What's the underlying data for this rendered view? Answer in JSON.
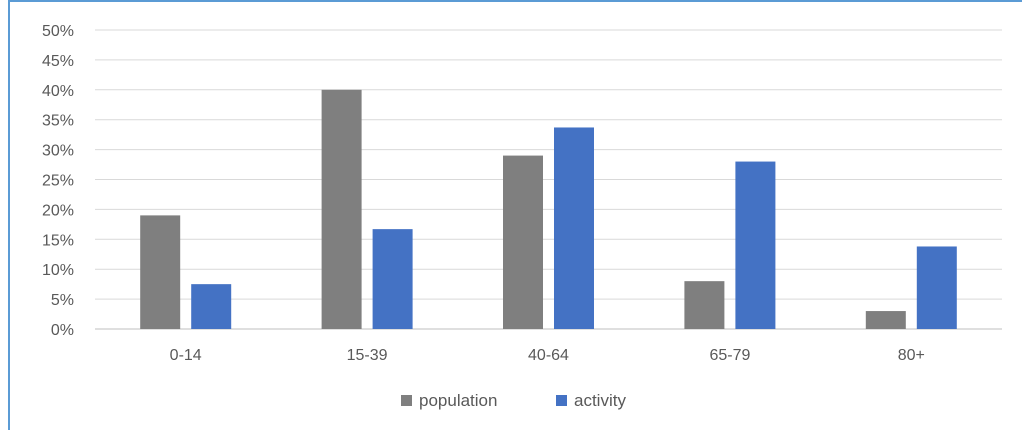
{
  "chart_data": {
    "type": "bar",
    "categories": [
      "0-14",
      "15-39",
      "40-64",
      "65-79",
      "80+"
    ],
    "series": [
      {
        "name": "population",
        "values": [
          19,
          40,
          29,
          8,
          3
        ],
        "color": "#7f7f7f"
      },
      {
        "name": "activity",
        "values": [
          7.5,
          16.7,
          33.7,
          28,
          13.8
        ],
        "color": "#4472c4"
      }
    ],
    "ylim": [
      0,
      50
    ],
    "yticks": [
      "0%",
      "5%",
      "10%",
      "15%",
      "20%",
      "25%",
      "30%",
      "35%",
      "40%",
      "45%",
      "50%"
    ],
    "title": "",
    "xlabel": "",
    "ylabel": "",
    "grid": true,
    "legend_position": "bottom",
    "frame_color": "#5b9bd5"
  }
}
